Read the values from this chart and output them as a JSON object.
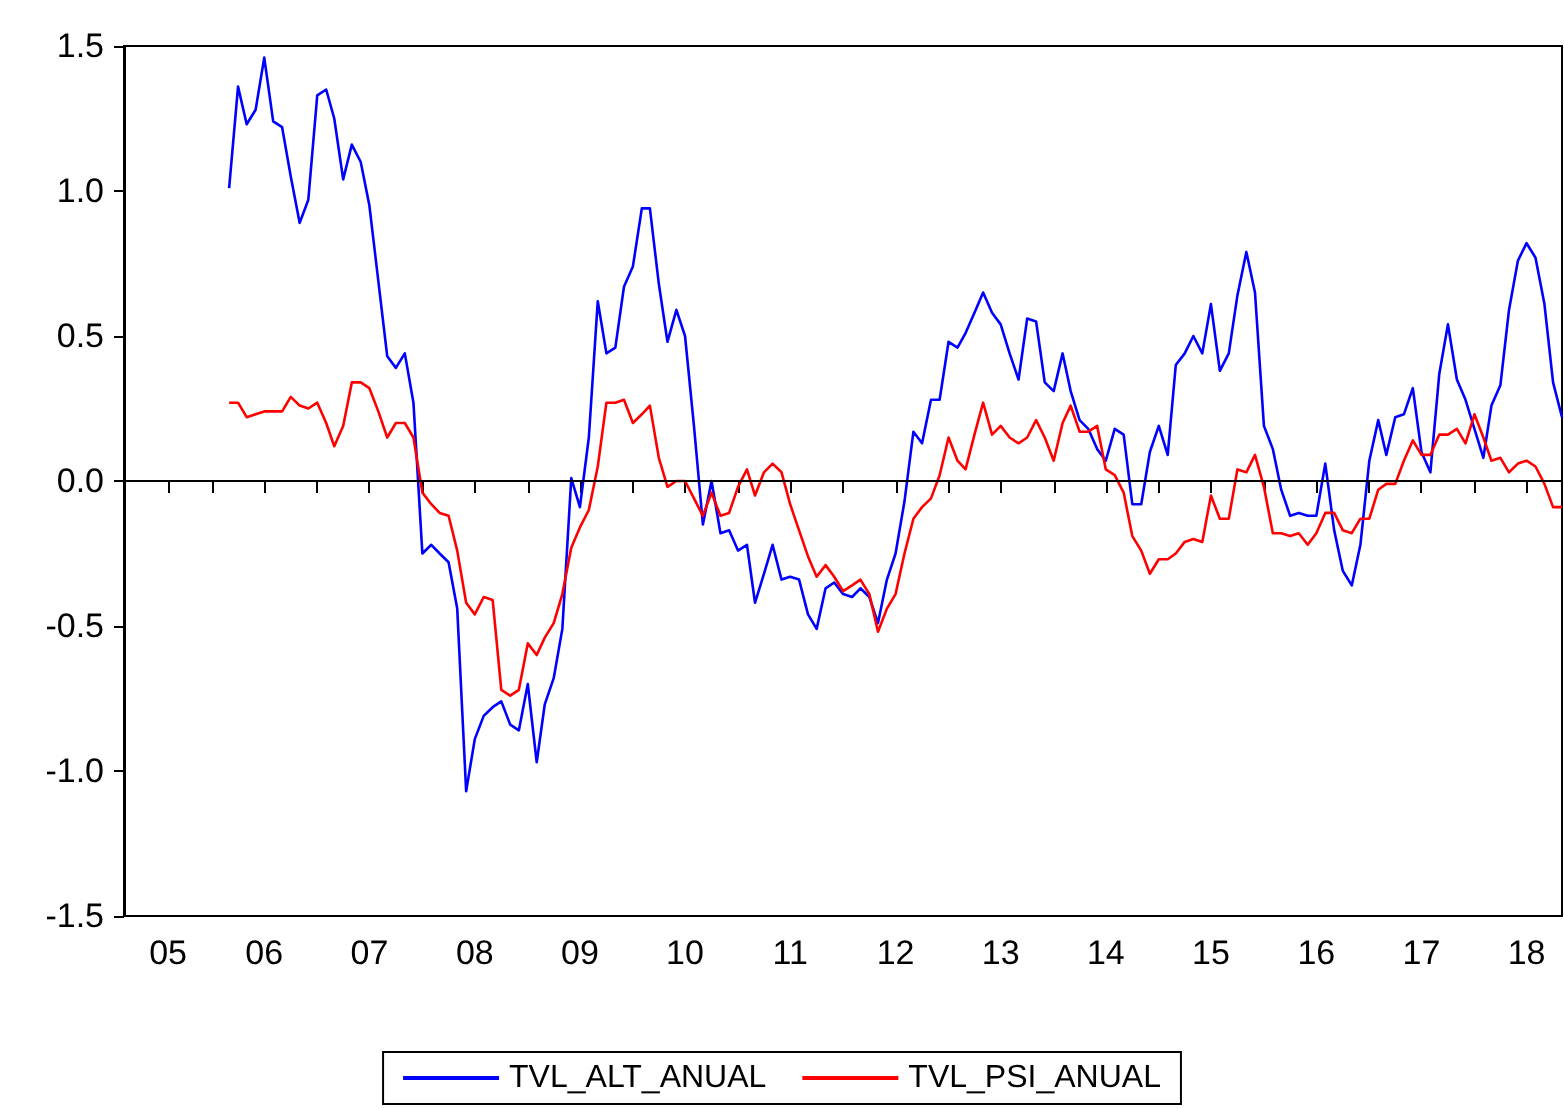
{
  "chart_data": {
    "type": "line",
    "grid": false,
    "legend": "bottom",
    "x": [
      "2006-03",
      "2006-04",
      "2006-05",
      "2006-06",
      "2006-07",
      "2006-08",
      "2006-09",
      "2006-10",
      "2006-11",
      "2006-12",
      "2007-01",
      "2007-02",
      "2007-03",
      "2007-04",
      "2007-05",
      "2007-06",
      "2007-07",
      "2007-08",
      "2007-09",
      "2007-10",
      "2007-11",
      "2007-12",
      "2008-01",
      "2008-02",
      "2008-03",
      "2008-04",
      "2008-05",
      "2008-06",
      "2008-07",
      "2008-08",
      "2008-09",
      "2008-10",
      "2008-11",
      "2008-12",
      "2009-01",
      "2009-02",
      "2009-03",
      "2009-04",
      "2009-05",
      "2009-06",
      "2009-07",
      "2009-08",
      "2009-09",
      "2009-10",
      "2009-11",
      "2009-12",
      "2010-01",
      "2010-02",
      "2010-03",
      "2010-04",
      "2010-05",
      "2010-06",
      "2010-07",
      "2010-08",
      "2010-09",
      "2010-10",
      "2010-11",
      "2010-12",
      "2011-01",
      "2011-02",
      "2011-03",
      "2011-04",
      "2011-05",
      "2011-06",
      "2011-07",
      "2011-08",
      "2011-09",
      "2011-10",
      "2011-11",
      "2011-12",
      "2012-01",
      "2012-02",
      "2012-03",
      "2012-04",
      "2012-05",
      "2012-06",
      "2012-07",
      "2012-08",
      "2012-09",
      "2012-10",
      "2012-11",
      "2012-12",
      "2013-01",
      "2013-02",
      "2013-03",
      "2013-04",
      "2013-05",
      "2013-06",
      "2013-07",
      "2013-08",
      "2013-09",
      "2013-10",
      "2013-11",
      "2013-12",
      "2014-01",
      "2014-02",
      "2014-03",
      "2014-04",
      "2014-05",
      "2014-06",
      "2014-07",
      "2014-08",
      "2014-09",
      "2014-10",
      "2014-11",
      "2014-12",
      "2015-01",
      "2015-02",
      "2015-03",
      "2015-04",
      "2015-05",
      "2015-06",
      "2015-07",
      "2015-08",
      "2015-09",
      "2015-10",
      "2015-11",
      "2015-12",
      "2016-01",
      "2016-02",
      "2016-03",
      "2016-04",
      "2016-05",
      "2016-06",
      "2016-07",
      "2016-08",
      "2016-09",
      "2016-10",
      "2016-11",
      "2016-12",
      "2017-01",
      "2017-02",
      "2017-03",
      "2017-04",
      "2017-05",
      "2017-06",
      "2017-07",
      "2017-08",
      "2017-09",
      "2017-10",
      "2017-11",
      "2017-12",
      "2018-01",
      "2018-02",
      "2018-03",
      "2018-04",
      "2018-05",
      "2018-06",
      "2018-07",
      "2018-08",
      "2018-09",
      "2018-10",
      "2018-11"
    ],
    "xlim": [
      "2005-03",
      "2018-11"
    ],
    "xticks": [
      {
        "value": "2005-08",
        "label": "05"
      },
      {
        "value": "2006",
        "label": null
      },
      {
        "value": "2006-07",
        "label": "06"
      },
      {
        "value": "2007",
        "label": null
      },
      {
        "value": "2007-07",
        "label": "07"
      },
      {
        "value": "2008",
        "label": null
      },
      {
        "value": "2008-07",
        "label": "08"
      },
      {
        "value": "2009",
        "label": null
      },
      {
        "value": "2009-07",
        "label": "09"
      },
      {
        "value": "2010",
        "label": null
      },
      {
        "value": "2010-07",
        "label": "10"
      },
      {
        "value": "2011",
        "label": null
      },
      {
        "value": "2011-07",
        "label": "11"
      },
      {
        "value": "2012",
        "label": null
      },
      {
        "value": "2012-07",
        "label": "12"
      },
      {
        "value": "2013",
        "label": null
      },
      {
        "value": "2013-07",
        "label": "13"
      },
      {
        "value": "2014",
        "label": null
      },
      {
        "value": "2014-07",
        "label": "14"
      },
      {
        "value": "2015",
        "label": null
      },
      {
        "value": "2015-07",
        "label": "15"
      },
      {
        "value": "2016",
        "label": null
      },
      {
        "value": "2016-07",
        "label": "16"
      },
      {
        "value": "2017",
        "label": null
      },
      {
        "value": "2017-07",
        "label": "17"
      },
      {
        "value": "2018",
        "label": null
      },
      {
        "value": "2018-07",
        "label": "18"
      }
    ],
    "ylim": [
      -1.5,
      1.5
    ],
    "yticks": [
      {
        "value": -1.5,
        "label": "-1.5"
      },
      {
        "value": -1,
        "label": "-1.0"
      },
      {
        "value": -0.5,
        "label": "-0.5"
      },
      {
        "value": 0,
        "label": "0.0"
      },
      {
        "value": 0.5,
        "label": "0.5"
      },
      {
        "value": 1,
        "label": "1.0"
      },
      {
        "value": 1.5,
        "label": "1.5"
      }
    ],
    "ref_lines": [
      {
        "axis": "y",
        "value": 0,
        "color": "#000000"
      }
    ],
    "series": [
      {
        "name": "TVL_ALT_ANUAL",
        "color": "#0000ff",
        "values": [
          1.01,
          1.36,
          1.23,
          1.28,
          1.46,
          1.24,
          1.22,
          1.05,
          0.89,
          0.97,
          1.33,
          1.35,
          1.25,
          1.04,
          1.16,
          1.1,
          0.95,
          0.69,
          0.43,
          0.39,
          0.44,
          0.27,
          -0.25,
          -0.22,
          -0.25,
          -0.28,
          -0.44,
          -1.07,
          -0.89,
          -0.81,
          -0.78,
          -0.76,
          -0.84,
          -0.86,
          -0.7,
          -0.97,
          -0.77,
          -0.68,
          -0.51,
          0.01,
          -0.09,
          0.15,
          0.62,
          0.44,
          0.46,
          0.67,
          0.74,
          0.94,
          0.94,
          0.68,
          0.48,
          0.59,
          0.5,
          0.19,
          -0.15,
          0.0,
          -0.18,
          -0.17,
          -0.24,
          -0.22,
          -0.42,
          -0.32,
          -0.22,
          -0.34,
          -0.33,
          -0.34,
          -0.46,
          -0.51,
          -0.37,
          -0.35,
          -0.39,
          -0.4,
          -0.37,
          -0.4,
          -0.49,
          -0.34,
          -0.25,
          -0.07,
          0.17,
          0.13,
          0.28,
          0.28,
          0.48,
          0.46,
          0.51,
          0.58,
          0.65,
          0.58,
          0.54,
          0.44,
          0.35,
          0.56,
          0.55,
          0.34,
          0.31,
          0.44,
          0.31,
          0.21,
          0.18,
          0.11,
          0.07,
          0.18,
          0.16,
          -0.08,
          -0.08,
          0.1,
          0.19,
          0.09,
          0.4,
          0.44,
          0.5,
          0.44,
          0.61,
          0.38,
          0.44,
          0.64,
          0.79,
          0.65,
          0.19,
          0.11,
          -0.03,
          -0.12,
          -0.11,
          -0.12,
          -0.12,
          0.06,
          -0.17,
          -0.31,
          -0.36,
          -0.22,
          0.07,
          0.21,
          0.09,
          0.22,
          0.23,
          0.32,
          0.1,
          0.03,
          0.37,
          0.54,
          0.35,
          0.28,
          0.18,
          0.08,
          0.26,
          0.33,
          0.59,
          0.76,
          0.82,
          0.77,
          0.61,
          0.34,
          0.22
        ]
      },
      {
        "name": "TVL_PSI_ANUAL",
        "color": "#ff0000",
        "values": [
          0.27,
          0.27,
          0.22,
          0.23,
          0.24,
          0.24,
          0.24,
          0.29,
          0.26,
          0.25,
          0.27,
          0.2,
          0.12,
          0.19,
          0.34,
          0.34,
          0.32,
          0.24,
          0.15,
          0.2,
          0.2,
          0.15,
          -0.04,
          -0.08,
          -0.11,
          -0.12,
          -0.24,
          -0.42,
          -0.46,
          -0.4,
          -0.41,
          -0.72,
          -0.74,
          -0.72,
          -0.56,
          -0.6,
          -0.54,
          -0.49,
          -0.39,
          -0.23,
          -0.16,
          -0.1,
          0.05,
          0.27,
          0.27,
          0.28,
          0.2,
          0.23,
          0.26,
          0.08,
          -0.02,
          0.0,
          0.0,
          -0.06,
          -0.12,
          -0.04,
          -0.12,
          -0.11,
          -0.02,
          0.04,
          -0.05,
          0.03,
          0.06,
          0.03,
          -0.08,
          -0.17,
          -0.26,
          -0.33,
          -0.29,
          -0.33,
          -0.38,
          -0.36,
          -0.34,
          -0.39,
          -0.52,
          -0.44,
          -0.39,
          -0.25,
          -0.13,
          -0.09,
          -0.06,
          0.02,
          0.15,
          0.07,
          0.04,
          0.16,
          0.27,
          0.16,
          0.19,
          0.15,
          0.13,
          0.15,
          0.21,
          0.15,
          0.07,
          0.2,
          0.26,
          0.17,
          0.17,
          0.19,
          0.04,
          0.02,
          -0.04,
          -0.19,
          -0.24,
          -0.32,
          -0.27,
          -0.27,
          -0.25,
          -0.21,
          -0.2,
          -0.21,
          -0.05,
          -0.13,
          -0.13,
          0.04,
          0.03,
          0.09,
          -0.02,
          -0.18,
          -0.18,
          -0.19,
          -0.18,
          -0.22,
          -0.18,
          -0.11,
          -0.11,
          -0.17,
          -0.18,
          -0.13,
          -0.13,
          -0.03,
          -0.01,
          -0.01,
          0.07,
          0.14,
          0.09,
          0.09,
          0.16,
          0.16,
          0.18,
          0.13,
          0.23,
          0.15,
          0.07,
          0.08,
          0.03,
          0.06,
          0.07,
          0.05,
          -0.01,
          -0.09,
          -0.09
        ]
      }
    ]
  }
}
